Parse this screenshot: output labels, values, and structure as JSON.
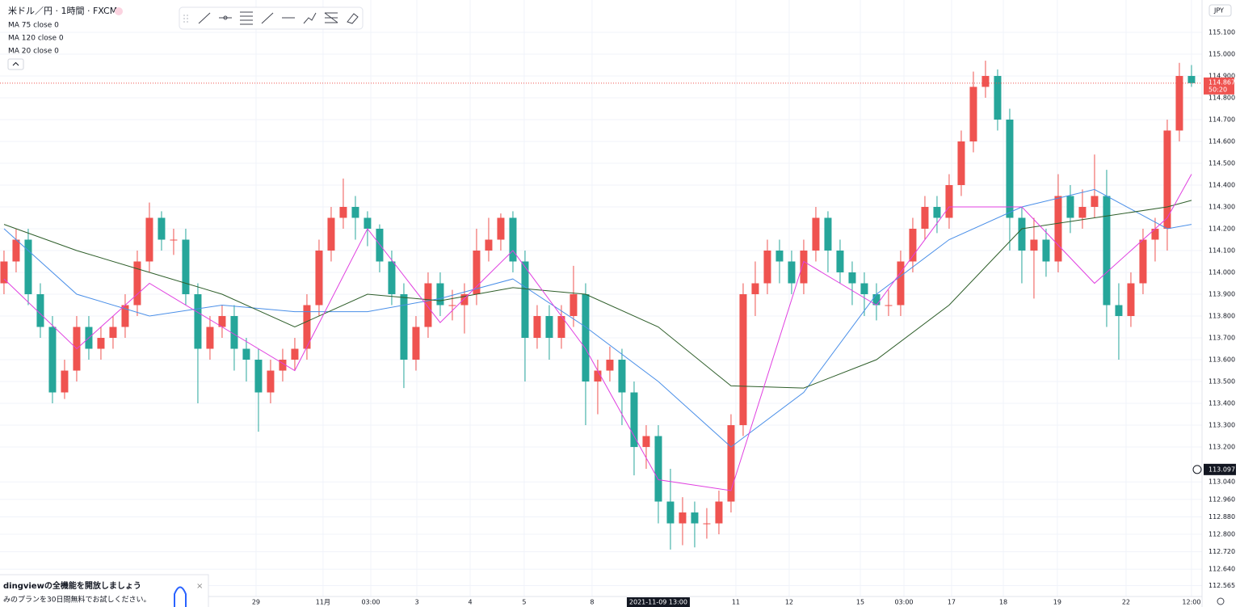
{
  "header": {
    "symbol": "米ドル／円 · 1時間 · FXCM",
    "indicators": [
      "MA 75 close 0",
      "MA 120 close 0",
      "MA 20 close 0"
    ],
    "currency": "JPY"
  },
  "promo": {
    "title": "dingviewの全機能を開放しましょう",
    "text": "みのプランを30日間無料でお試しください。"
  },
  "chart_data": {
    "type": "candlestick",
    "up_color": "#ef5350",
    "down_color": "#26a69a",
    "xlim": [
      -0.33,
      98.87
    ],
    "ylim": [
      112.515,
      115.248
    ],
    "grid": true,
    "xticks": [
      {
        "value": 20.8,
        "label": "29"
      },
      {
        "value": 26.33,
        "label": "11月"
      },
      {
        "value": 30.27,
        "label": "03:00"
      },
      {
        "value": 34.07,
        "label": "3"
      },
      {
        "value": 38.47,
        "label": "4"
      },
      {
        "value": 42.93,
        "label": "5"
      },
      {
        "value": 48.53,
        "label": "8"
      },
      {
        "value": 60.4,
        "label": "11"
      },
      {
        "value": 64.8,
        "label": "12"
      },
      {
        "value": 70.67,
        "label": "15"
      },
      {
        "value": 74.27,
        "label": "03:00"
      },
      {
        "value": 78.2,
        "label": "17"
      },
      {
        "value": 82.47,
        "label": "18"
      },
      {
        "value": 86.93,
        "label": "19"
      },
      {
        "value": 92.6,
        "label": "22"
      },
      {
        "value": 98.0,
        "label": "12:00"
      }
    ],
    "yticks": [
      {
        "value": 115.1,
        "label": "115.100"
      },
      {
        "value": 115.0,
        "label": "115.000"
      },
      {
        "value": 114.9,
        "label": "114.900"
      },
      {
        "value": 114.8,
        "label": "114.800"
      },
      {
        "value": 114.7,
        "label": "114.700"
      },
      {
        "value": 114.6,
        "label": "114.600"
      },
      {
        "value": 114.5,
        "label": "114.500"
      },
      {
        "value": 114.4,
        "label": "114.400"
      },
      {
        "value": 114.3,
        "label": "114.300"
      },
      {
        "value": 114.2,
        "label": "114.200"
      },
      {
        "value": 114.1,
        "label": "114.100"
      },
      {
        "value": 114.0,
        "label": "114.000"
      },
      {
        "value": 113.9,
        "label": "113.900"
      },
      {
        "value": 113.8,
        "label": "113.800"
      },
      {
        "value": 113.7,
        "label": "113.700"
      },
      {
        "value": 113.6,
        "label": "113.600"
      },
      {
        "value": 113.5,
        "label": "113.500"
      },
      {
        "value": 113.4,
        "label": "113.400"
      },
      {
        "value": 113.3,
        "label": "113.300"
      },
      {
        "value": 113.2,
        "label": "113.200"
      },
      {
        "value": 113.04,
        "label": "113.040"
      },
      {
        "value": 112.96,
        "label": "112.960"
      },
      {
        "value": 112.88,
        "label": "112.880"
      },
      {
        "value": 112.8,
        "label": "112.800"
      },
      {
        "value": 112.72,
        "label": "112.720"
      },
      {
        "value": 112.64,
        "label": "112.640"
      },
      {
        "value": 112.565,
        "label": "112.565"
      }
    ],
    "candles": [
      [
        113.95,
        114.1,
        113.9,
        114.05
      ],
      [
        114.05,
        114.2,
        114.0,
        114.15
      ],
      [
        114.15,
        114.2,
        113.85,
        113.9
      ],
      [
        113.9,
        113.95,
        113.7,
        113.75
      ],
      [
        113.75,
        113.8,
        113.4,
        113.45
      ],
      [
        113.45,
        113.6,
        113.42,
        113.55
      ],
      [
        113.55,
        113.8,
        113.5,
        113.75
      ],
      [
        113.75,
        113.8,
        113.6,
        113.65
      ],
      [
        113.65,
        113.75,
        113.6,
        113.7
      ],
      [
        113.7,
        113.8,
        113.65,
        113.75
      ],
      [
        113.75,
        113.9,
        113.7,
        113.85
      ],
      [
        113.85,
        114.1,
        113.8,
        114.05
      ],
      [
        114.05,
        114.32,
        114.0,
        114.25
      ],
      [
        114.25,
        114.28,
        114.1,
        114.15
      ],
      [
        114.15,
        114.2,
        114.08,
        114.15
      ],
      [
        114.15,
        114.2,
        113.85,
        113.9
      ],
      [
        113.9,
        113.95,
        113.4,
        113.65
      ],
      [
        113.65,
        113.8,
        113.6,
        113.75
      ],
      [
        113.75,
        113.85,
        113.7,
        113.8
      ],
      [
        113.8,
        113.85,
        113.55,
        113.65
      ],
      [
        113.65,
        113.7,
        113.5,
        113.6
      ],
      [
        113.6,
        113.65,
        113.27,
        113.45
      ],
      [
        113.45,
        113.6,
        113.4,
        113.55
      ],
      [
        113.55,
        113.65,
        113.5,
        113.6
      ],
      [
        113.6,
        113.7,
        113.55,
        113.65
      ],
      [
        113.65,
        113.9,
        113.6,
        113.85
      ],
      [
        113.85,
        114.15,
        113.8,
        114.1
      ],
      [
        114.1,
        114.3,
        114.05,
        114.25
      ],
      [
        114.25,
        114.43,
        114.2,
        114.3
      ],
      [
        114.3,
        114.35,
        114.15,
        114.25
      ],
      [
        114.25,
        114.28,
        114.12,
        114.2
      ],
      [
        114.2,
        114.22,
        114.0,
        114.05
      ],
      [
        114.05,
        114.1,
        113.85,
        113.9
      ],
      [
        113.9,
        113.95,
        113.47,
        113.6
      ],
      [
        113.6,
        113.8,
        113.55,
        113.75
      ],
      [
        113.75,
        114.0,
        113.7,
        113.95
      ],
      [
        113.95,
        114.0,
        113.8,
        113.85
      ],
      [
        113.85,
        113.92,
        113.78,
        113.85
      ],
      [
        113.85,
        113.95,
        113.72,
        113.9
      ],
      [
        113.9,
        114.2,
        113.85,
        114.1
      ],
      [
        114.1,
        114.25,
        114.05,
        114.15
      ],
      [
        114.15,
        114.27,
        114.1,
        114.25
      ],
      [
        114.25,
        114.28,
        114.0,
        114.05
      ],
      [
        114.05,
        114.1,
        113.5,
        113.7
      ],
      [
        113.7,
        113.85,
        113.65,
        113.8
      ],
      [
        113.8,
        113.85,
        113.6,
        113.7
      ],
      [
        113.7,
        113.85,
        113.65,
        113.8
      ],
      [
        113.8,
        114.03,
        113.75,
        113.9
      ],
      [
        113.9,
        113.95,
        113.3,
        113.5
      ],
      [
        113.5,
        113.6,
        113.35,
        113.55
      ],
      [
        113.55,
        113.66,
        113.5,
        113.6
      ],
      [
        113.6,
        113.65,
        113.3,
        113.45
      ],
      [
        113.45,
        113.5,
        113.07,
        113.2
      ],
      [
        113.2,
        113.3,
        113.1,
        113.25
      ],
      [
        113.25,
        113.3,
        112.85,
        112.95
      ],
      [
        112.95,
        113.1,
        112.73,
        112.85
      ],
      [
        112.85,
        112.97,
        112.75,
        112.9
      ],
      [
        112.9,
        112.95,
        112.74,
        112.85
      ],
      [
        112.85,
        112.92,
        112.78,
        112.85
      ],
      [
        112.85,
        113.0,
        112.8,
        112.95
      ],
      [
        112.95,
        113.35,
        112.9,
        113.3
      ],
      [
        113.3,
        113.95,
        113.25,
        113.9
      ],
      [
        113.9,
        114.05,
        113.8,
        113.95
      ],
      [
        113.95,
        114.15,
        113.9,
        114.1
      ],
      [
        114.1,
        114.15,
        113.95,
        114.05
      ],
      [
        114.05,
        114.1,
        113.9,
        113.95
      ],
      [
        113.95,
        114.15,
        113.9,
        114.1
      ],
      [
        114.1,
        114.3,
        114.05,
        114.25
      ],
      [
        114.25,
        114.28,
        114.0,
        114.1
      ],
      [
        114.1,
        114.15,
        113.95,
        114.0
      ],
      [
        114.0,
        114.05,
        113.85,
        113.95
      ],
      [
        113.95,
        114.0,
        113.8,
        113.9
      ],
      [
        113.9,
        113.95,
        113.78,
        113.85
      ],
      [
        113.85,
        113.92,
        113.8,
        113.85
      ],
      [
        113.85,
        114.1,
        113.8,
        114.05
      ],
      [
        114.05,
        114.25,
        114.0,
        114.2
      ],
      [
        114.2,
        114.35,
        114.15,
        114.3
      ],
      [
        114.3,
        114.35,
        114.18,
        114.25
      ],
      [
        114.25,
        114.45,
        114.2,
        114.4
      ],
      [
        114.4,
        114.65,
        114.35,
        114.6
      ],
      [
        114.6,
        114.92,
        114.55,
        114.85
      ],
      [
        114.85,
        114.97,
        114.8,
        114.9
      ],
      [
        114.9,
        114.93,
        114.65,
        114.7
      ],
      [
        114.7,
        114.75,
        114.1,
        114.25
      ],
      [
        114.25,
        114.3,
        113.95,
        114.1
      ],
      [
        114.1,
        114.25,
        113.88,
        114.15
      ],
      [
        114.15,
        114.2,
        113.98,
        114.05
      ],
      [
        114.05,
        114.45,
        114.0,
        114.35
      ],
      [
        114.35,
        114.4,
        114.18,
        114.25
      ],
      [
        114.25,
        114.38,
        114.2,
        114.3
      ],
      [
        114.3,
        114.54,
        114.25,
        114.35
      ],
      [
        114.35,
        114.47,
        113.75,
        113.85
      ],
      [
        113.85,
        113.95,
        113.6,
        113.8
      ],
      [
        113.8,
        114.0,
        113.75,
        113.95
      ],
      [
        113.95,
        114.2,
        113.9,
        114.15
      ],
      [
        114.15,
        114.25,
        114.05,
        114.2
      ],
      [
        114.2,
        114.7,
        114.1,
        114.65
      ],
      [
        114.65,
        114.96,
        114.6,
        114.9
      ],
      [
        114.9,
        114.95,
        114.85,
        114.867
      ]
    ],
    "series": [
      {
        "name": "MA 75 close 0",
        "color": "#4a8fe8",
        "x": [
          0,
          6,
          12,
          18,
          24,
          30,
          36,
          42,
          48,
          54,
          60,
          66,
          72,
          78,
          84,
          90,
          96,
          98
        ],
        "values": [
          114.2,
          113.9,
          113.8,
          113.85,
          113.82,
          113.82,
          113.88,
          113.97,
          113.75,
          113.5,
          113.2,
          113.45,
          113.9,
          114.15,
          114.3,
          114.38,
          114.2,
          114.22
        ]
      },
      {
        "name": "MA 120 close 0",
        "color": "#2e5e2a",
        "x": [
          0,
          6,
          12,
          18,
          24,
          30,
          36,
          42,
          48,
          54,
          60,
          66,
          72,
          78,
          84,
          90,
          96,
          98
        ],
        "values": [
          114.22,
          114.1,
          114.0,
          113.9,
          113.75,
          113.9,
          113.87,
          113.93,
          113.9,
          113.75,
          113.48,
          113.47,
          113.6,
          113.85,
          114.2,
          114.25,
          114.3,
          114.33
        ]
      },
      {
        "name": "MA 20 close 0",
        "color": "#e040e0",
        "x": [
          0,
          6,
          12,
          18,
          24,
          30,
          36,
          42,
          48,
          54,
          60,
          66,
          72,
          78,
          84,
          90,
          96,
          98
        ],
        "values": [
          113.97,
          113.65,
          113.95,
          113.75,
          113.55,
          114.2,
          113.77,
          114.1,
          113.65,
          113.05,
          113.0,
          114.05,
          113.85,
          114.3,
          114.3,
          113.95,
          114.25,
          114.45
        ]
      }
    ],
    "last_price": {
      "value": 114.867,
      "label": "114.867",
      "countdown": "50:20"
    },
    "crosshair": {
      "x": 54,
      "x_label": "2021-11-09 13:00",
      "y": 113.097,
      "y_label": "113.097"
    }
  }
}
